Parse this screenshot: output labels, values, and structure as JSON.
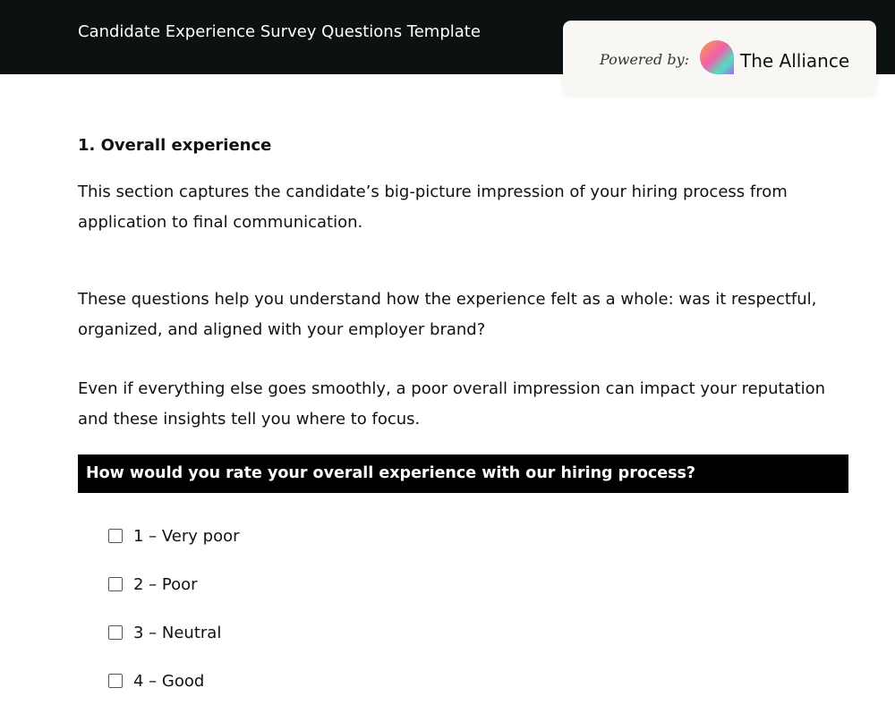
{
  "header": {
    "title": "Candidate Experience Survey Questions Template"
  },
  "brand": {
    "powered_by": "Powered by:",
    "name": "The Alliance",
    "logo_icon": "gradient-speech-bubble-logo"
  },
  "section": {
    "heading": "1. Overall experience",
    "paragraphs": [
      "This section captures the candidate’s big-picture impression of your hiring process from application to final communication.",
      "These questions help you understand how the experience felt as a whole: was it respectful, organized, and aligned with your employer brand?",
      "Even if everything else goes smoothly, a poor overall impression can impact your reputation and these insights tell you where to focus."
    ],
    "question": "How would you rate your overall experience with our hiring process?",
    "options": [
      {
        "label": "1 – Very poor",
        "checked": false
      },
      {
        "label": "2 – Poor",
        "checked": false
      },
      {
        "label": "3 – Neutral",
        "checked": false
      },
      {
        "label": "4 – Good",
        "checked": false
      }
    ]
  }
}
